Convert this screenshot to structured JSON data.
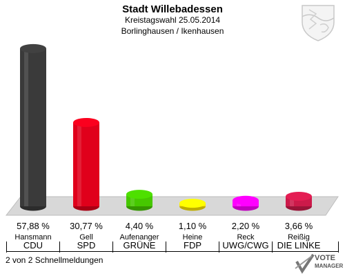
{
  "header": {
    "title": "Stadt Willebadessen",
    "subtitle": "Kreistagswahl 25.05.2014",
    "district": "Borlinghausen / Ikenhausen"
  },
  "colors": {
    "floor": "#d8d8d8",
    "floor_edge": "#bdbdbd"
  },
  "chart_data": {
    "type": "bar",
    "categories": [
      "CDU",
      "SPD",
      "GRÜNE",
      "FDP",
      "UWG/CWG",
      "DIE LINKE"
    ],
    "candidates": [
      "Hansmann",
      "Gell",
      "Aufenanger",
      "Heine",
      "Reck",
      "Reißig"
    ],
    "values": [
      57.88,
      30.77,
      4.4,
      1.1,
      2.2,
      3.66
    ],
    "value_labels": [
      "57,88 %",
      "30,77 %",
      "4,40 %",
      "1,10 %",
      "2,20 %",
      "3,66 %"
    ],
    "colors": [
      "#3a3a3a",
      "#e0001b",
      "#46c800",
      "#ffe600",
      "#ff00ff",
      "#cc1a4a"
    ],
    "ylim": [
      0,
      60
    ]
  },
  "footer": {
    "text": "2 von 2 Schnellmeldungen"
  },
  "logo": {
    "line1": "VOTE",
    "line2": "MANAGER"
  }
}
